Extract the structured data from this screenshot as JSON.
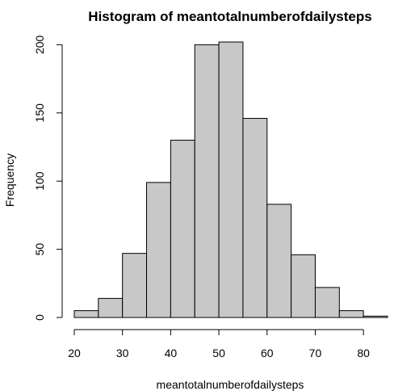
{
  "chart_data": {
    "type": "bar",
    "title": "Histogram of meantotalnumberofdailysteps",
    "xlabel": "meantotalnumberofdailysteps",
    "ylabel": "Frequency",
    "bin_edges": [
      20,
      25,
      30,
      35,
      40,
      45,
      50,
      55,
      60,
      65,
      70,
      75,
      80,
      85
    ],
    "values": [
      5,
      14,
      47,
      99,
      130,
      200,
      202,
      146,
      83,
      46,
      22,
      5,
      1
    ],
    "xlim": [
      20,
      85
    ],
    "ylim": [
      0,
      202
    ],
    "x_ticks": [
      20,
      30,
      40,
      50,
      60,
      70,
      80
    ],
    "y_ticks": [
      0,
      50,
      100,
      150,
      200
    ],
    "grid": false,
    "legend": "none",
    "bar_color": "#c8c8c8",
    "edge_color": "#000000"
  }
}
